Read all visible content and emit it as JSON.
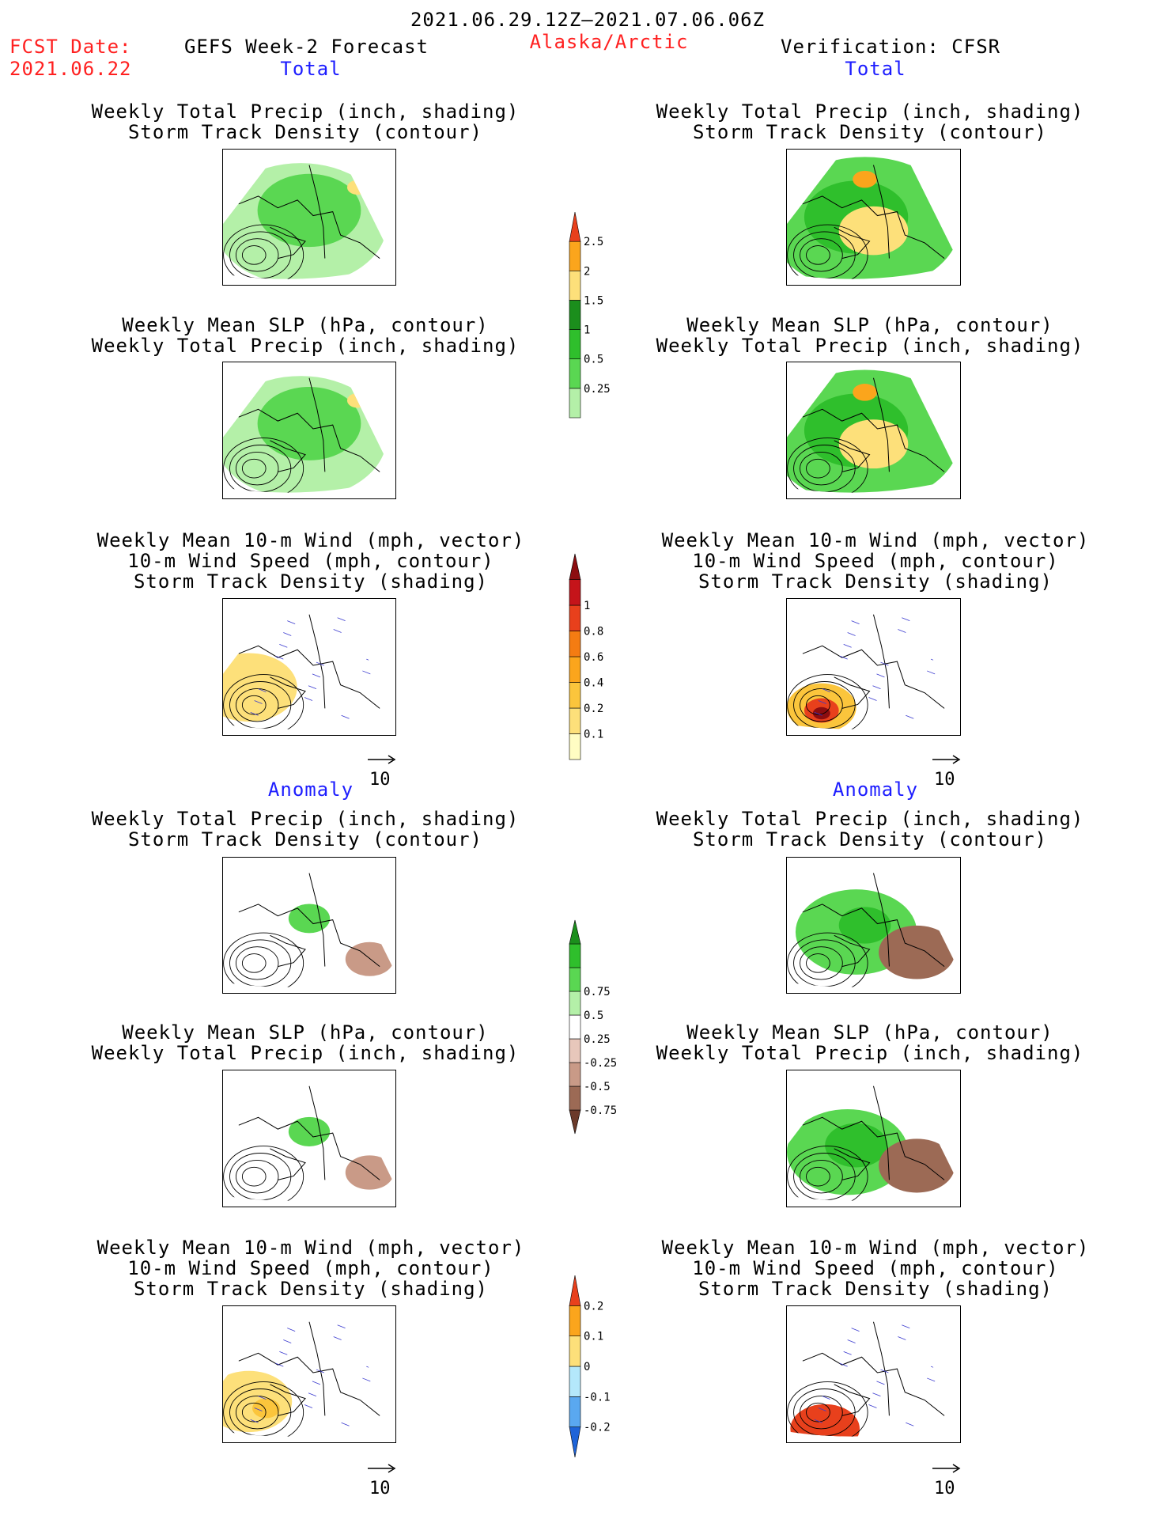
{
  "header": {
    "period": "2021.06.29.12Z–2021.07.06.06Z",
    "fcst_label": "FCST Date:",
    "fcst_date": "2021.06.22",
    "model": "GEFS Week-2 Forecast",
    "region": "Alaska/Arctic",
    "verification": "Verification: CFSR"
  },
  "sections": {
    "total": "Total",
    "anomaly": "Anomaly"
  },
  "titles": {
    "precip_storm": [
      "Weekly Total Precip (inch, shading)",
      "Storm Track Density (contour)"
    ],
    "slp_precip": [
      "Weekly Mean SLP (hPa, contour)",
      "Weekly Total Precip (inch, shading)"
    ],
    "wind_storm": [
      "Weekly Mean 10-m Wind (mph, vector)",
      "10-m Wind Speed (mph, contour)",
      "Storm Track Density (shading)"
    ]
  },
  "vector_ref": "10",
  "colorbars": {
    "precip_total": {
      "labels": [
        "0.25",
        "0.5",
        "1",
        "1.5",
        "2",
        "2.5"
      ],
      "colors": [
        "#b4f0a8",
        "#5ad752",
        "#2fbf2c",
        "#1b8e1c",
        "#fde07a",
        "#fba51c",
        "#e8401c"
      ]
    },
    "storm_total": {
      "labels": [
        "0.1",
        "0.2",
        "0.4",
        "0.6",
        "0.8",
        "1"
      ],
      "colors": [
        "#fffdc3",
        "#fde07a",
        "#fbc53c",
        "#fba51c",
        "#f47c12",
        "#e8401c",
        "#c5141a",
        "#8c0d10"
      ]
    },
    "precip_anom": {
      "labels": [
        "-0.75",
        "-0.5",
        "-0.25",
        "0.25",
        "0.5",
        "0.75"
      ],
      "colors": [
        "#6b3a2a",
        "#9c6a55",
        "#c99a87",
        "#e7c7bb",
        "#ffffff",
        "#b4f0a8",
        "#5ad752",
        "#2fbf2c",
        "#1b8e1c"
      ]
    },
    "storm_anom": {
      "labels": [
        "-0.2",
        "-0.1",
        "0",
        "0.1",
        "0.2"
      ],
      "colors": [
        "#1e64d8",
        "#5aa8f0",
        "#b4e8fb",
        "#fde07a",
        "#fba51c",
        "#e8401c"
      ]
    }
  }
}
